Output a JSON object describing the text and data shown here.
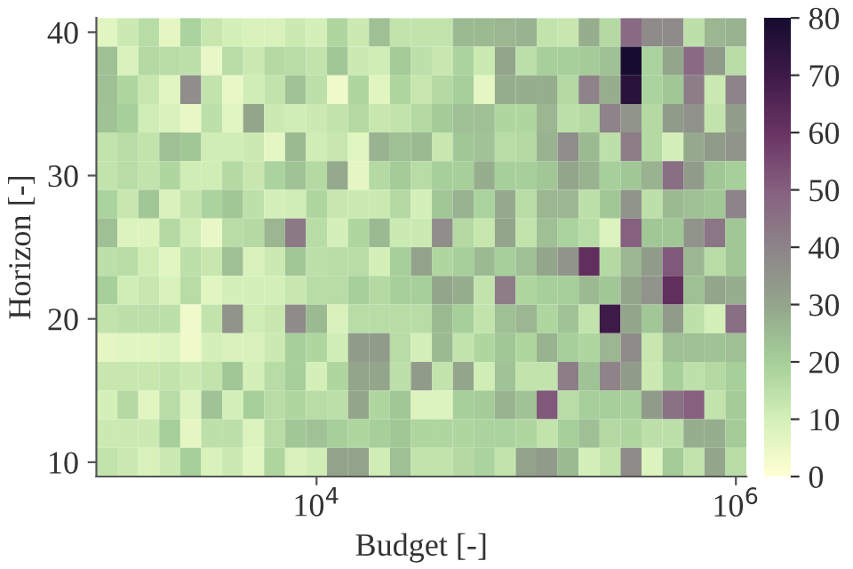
{
  "chart_data": {
    "type": "heatmap",
    "xlabel": "Budget [-]",
    "ylabel": "Horizon [-]",
    "clim": [
      0,
      80
    ],
    "cticks": [
      0,
      10,
      20,
      30,
      40,
      50,
      60,
      70,
      80
    ],
    "categories": [
      null,
      null,
      null,
      null,
      null,
      null,
      null,
      null,
      null,
      null,
      "10$^{4}$",
      null,
      null,
      null,
      null,
      null,
      null,
      null,
      null,
      null,
      null,
      null,
      null,
      null,
      null,
      null,
      null,
      null,
      null,
      null,
      "10$^{6}$"
    ],
    "y_categories": [
      "40",
      null,
      null,
      null,
      null,
      "30",
      null,
      null,
      null,
      null,
      "20",
      null,
      null,
      null,
      null,
      "10"
    ],
    "cells": [
      [
        7,
        12,
        16,
        6,
        19,
        13,
        10,
        9,
        9,
        12,
        10,
        18,
        12,
        24,
        14,
        14,
        14,
        25,
        25,
        26,
        27,
        14,
        13,
        28,
        17,
        47,
        38,
        38,
        15,
        26,
        27
      ],
      [
        24,
        9,
        17,
        16,
        15,
        5,
        16,
        12,
        17,
        16,
        14,
        22,
        12,
        11,
        21,
        15,
        13,
        19,
        12,
        30,
        15,
        20,
        20,
        21,
        24,
        80,
        19,
        30,
        47,
        33,
        16
      ],
      [
        24,
        18,
        13,
        7,
        37,
        14,
        5,
        11,
        14,
        23,
        15,
        4,
        18,
        7,
        18,
        13,
        17,
        20,
        6,
        28,
        28,
        28,
        17,
        40,
        28,
        75,
        19,
        22,
        42,
        12,
        40
      ],
      [
        23,
        20,
        11,
        9,
        5,
        15,
        7,
        30,
        12,
        11,
        12,
        14,
        17,
        13,
        14,
        17,
        21,
        24,
        24,
        18,
        18,
        26,
        15,
        17,
        40,
        35,
        17,
        33,
        36,
        14,
        32
      ],
      [
        14,
        16,
        14,
        24,
        22,
        11,
        11,
        12,
        6,
        25,
        11,
        13,
        7,
        27,
        24,
        25,
        13,
        22,
        23,
        16,
        17,
        27,
        37,
        25,
        15,
        42,
        17,
        10,
        29,
        33,
        35
      ],
      [
        14,
        16,
        14,
        18,
        11,
        11,
        17,
        13,
        19,
        23,
        17,
        29,
        6,
        17,
        21,
        16,
        20,
        20,
        28,
        20,
        20,
        22,
        30,
        27,
        20,
        22,
        27,
        46,
        33,
        22,
        20
      ],
      [
        19,
        13,
        22,
        9,
        14,
        19,
        22,
        15,
        10,
        11,
        18,
        13,
        12,
        12,
        17,
        10,
        22,
        27,
        19,
        29,
        16,
        26,
        26,
        15,
        22,
        35,
        15,
        25,
        24,
        22,
        40
      ],
      [
        24,
        8,
        8,
        17,
        11,
        5,
        16,
        17,
        26,
        43,
        16,
        10,
        18,
        25,
        12,
        12,
        37,
        17,
        13,
        30,
        14,
        24,
        19,
        16,
        8,
        50,
        22,
        22,
        35,
        44,
        22
      ],
      [
        15,
        16,
        11,
        7,
        15,
        13,
        24,
        9,
        12,
        22,
        15,
        16,
        16,
        10,
        20,
        31,
        18,
        20,
        25,
        20,
        24,
        30,
        35,
        62,
        17,
        26,
        33,
        52,
        26,
        16,
        22
      ],
      [
        20,
        11,
        13,
        9,
        16,
        7,
        10,
        10,
        10,
        13,
        16,
        16,
        20,
        17,
        20,
        20,
        30,
        28,
        14,
        42,
        18,
        20,
        20,
        25,
        22,
        30,
        35,
        62,
        24,
        30,
        28
      ],
      [
        14,
        15,
        15,
        15,
        4,
        14,
        35,
        11,
        13,
        38,
        25,
        9,
        16,
        16,
        16,
        16,
        25,
        20,
        14,
        24,
        26,
        18,
        23,
        14,
        70,
        30,
        22,
        33,
        15,
        10,
        46
      ],
      [
        6,
        7,
        7,
        8,
        4,
        10,
        9,
        9,
        12,
        20,
        18,
        11,
        33,
        33,
        16,
        10,
        25,
        14,
        18,
        22,
        18,
        27,
        20,
        18,
        26,
        38,
        13,
        24,
        24,
        23,
        24
      ],
      [
        13,
        13,
        13,
        14,
        12,
        14,
        22,
        10,
        16,
        20,
        10,
        18,
        30,
        30,
        15,
        33,
        14,
        30,
        11,
        23,
        14,
        14,
        42,
        23,
        40,
        33,
        12,
        20,
        15,
        17,
        20
      ],
      [
        10,
        17,
        7,
        16,
        8,
        23,
        10,
        20,
        16,
        18,
        16,
        15,
        30,
        18,
        22,
        8,
        8,
        20,
        21,
        27,
        23,
        52,
        16,
        20,
        20,
        20,
        33,
        45,
        50,
        14,
        21
      ],
      [
        12,
        12,
        12,
        20,
        6,
        15,
        15,
        8,
        16,
        22,
        23,
        20,
        18,
        20,
        22,
        18,
        18,
        18,
        19,
        19,
        18,
        14,
        20,
        24,
        17,
        18,
        15,
        15,
        28,
        28,
        21
      ],
      [
        14,
        12,
        9,
        12,
        20,
        9,
        12,
        7,
        18,
        9,
        11,
        31,
        31,
        11,
        24,
        14,
        14,
        17,
        19,
        14,
        31,
        33,
        25,
        10,
        14,
        38,
        8,
        21,
        14,
        30,
        16
      ]
    ]
  }
}
